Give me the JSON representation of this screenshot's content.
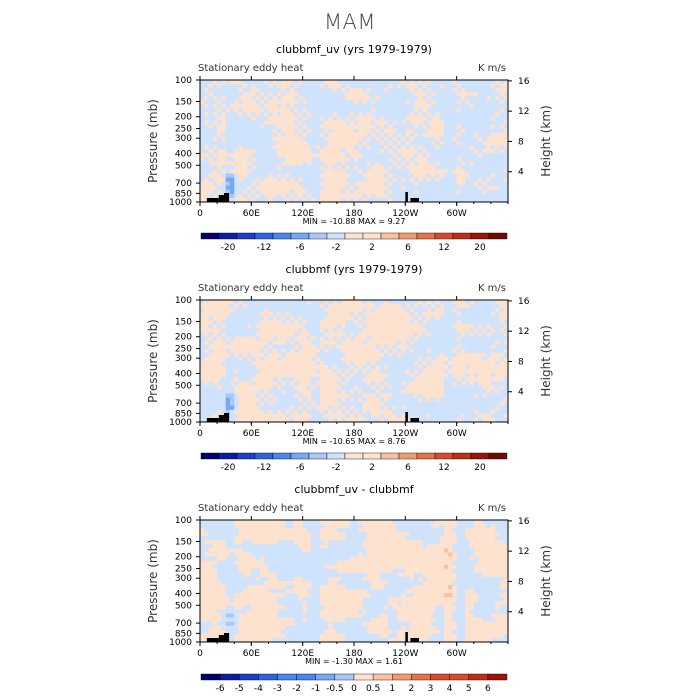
{
  "figure": {
    "title": "MAM"
  },
  "colors": {
    "neg": [
      "#02016b",
      "#0b1fa5",
      "#1a3fca",
      "#2f62e0",
      "#4a86ef",
      "#76a8f5",
      "#a8c8f8",
      "#d0e3fc"
    ],
    "pos": [
      "#fde2cf",
      "#f9c1a0",
      "#f09a72",
      "#e7724a",
      "#d74b2c",
      "#c02e17",
      "#9c150a",
      "#6d0a02"
    ],
    "topo": "#000000"
  },
  "chart_data": [
    {
      "type": "heatmap",
      "title": "clubbmf_uv (yrs 1979-1979)",
      "left_label": "Stationary eddy heat",
      "right_label": "K m/s",
      "ylabel": "Pressure (mb)",
      "ylabel_right": "Height (km)",
      "x_ticks": [
        "0",
        "60E",
        "120E",
        "180",
        "120W",
        "60W"
      ],
      "x_tick_lons": [
        0,
        60,
        120,
        180,
        240,
        300
      ],
      "xlim": [
        0,
        360
      ],
      "y_ticks": [
        "100",
        "150",
        "200",
        "250",
        "300",
        "400",
        "500",
        "700",
        "850",
        "1000"
      ],
      "y_tick_values": [
        100,
        150,
        200,
        250,
        300,
        400,
        500,
        700,
        850,
        1000
      ],
      "ylim": [
        1000,
        100
      ],
      "y_ticks_right": [
        "4",
        "8",
        "12",
        "16"
      ],
      "y_right_values": [
        4,
        8,
        12,
        16
      ],
      "stats_text": "MIN = -10.88  MAX =  9.27",
      "min": -10.88,
      "max": 9.27,
      "colorbar_labels": [
        "-20",
        "-12",
        "-6",
        "-2",
        "2",
        "6",
        "12",
        "20"
      ],
      "colorbar_levels": [
        -20,
        -16,
        -12,
        -8,
        -6,
        -4,
        -2,
        -1,
        1,
        2,
        4,
        6,
        8,
        12,
        16,
        20
      ]
    },
    {
      "type": "heatmap",
      "title": "clubbmf (yrs 1979-1979)",
      "left_label": "Stationary eddy heat",
      "right_label": "K m/s",
      "ylabel": "Pressure (mb)",
      "ylabel_right": "Height (km)",
      "x_ticks": [
        "0",
        "60E",
        "120E",
        "180",
        "120W",
        "60W"
      ],
      "x_tick_lons": [
        0,
        60,
        120,
        180,
        240,
        300
      ],
      "xlim": [
        0,
        360
      ],
      "y_ticks": [
        "100",
        "150",
        "200",
        "250",
        "300",
        "400",
        "500",
        "700",
        "850",
        "1000"
      ],
      "y_tick_values": [
        100,
        150,
        200,
        250,
        300,
        400,
        500,
        700,
        850,
        1000
      ],
      "ylim": [
        1000,
        100
      ],
      "y_ticks_right": [
        "4",
        "8",
        "12",
        "16"
      ],
      "y_right_values": [
        4,
        8,
        12,
        16
      ],
      "stats_text": "MIN = -10.65  MAX =  8.76",
      "min": -10.65,
      "max": 8.76,
      "colorbar_labels": [
        "-20",
        "-12",
        "-6",
        "-2",
        "2",
        "6",
        "12",
        "20"
      ],
      "colorbar_levels": [
        -20,
        -16,
        -12,
        -8,
        -6,
        -4,
        -2,
        -1,
        1,
        2,
        4,
        6,
        8,
        12,
        16,
        20
      ]
    },
    {
      "type": "heatmap",
      "title": "clubbmf_uv - clubbmf",
      "left_label": "Stationary eddy heat",
      "right_label": "K m/s",
      "ylabel": "Pressure (mb)",
      "ylabel_right": "Height (km)",
      "x_ticks": [
        "0",
        "60E",
        "120E",
        "180",
        "120W",
        "60W"
      ],
      "x_tick_lons": [
        0,
        60,
        120,
        180,
        240,
        300
      ],
      "xlim": [
        0,
        360
      ],
      "y_ticks": [
        "100",
        "150",
        "200",
        "250",
        "300",
        "400",
        "500",
        "700",
        "850",
        "1000"
      ],
      "y_tick_values": [
        100,
        150,
        200,
        250,
        300,
        400,
        500,
        700,
        850,
        1000
      ],
      "ylim": [
        1000,
        100
      ],
      "y_ticks_right": [
        "4",
        "8",
        "12",
        "16"
      ],
      "y_right_values": [
        4,
        8,
        12,
        16
      ],
      "stats_text": "MIN = -1.30  MAX =  1.61",
      "min": -1.3,
      "max": 1.61,
      "colorbar_labels": [
        "-6",
        "-5",
        "-4",
        "-3",
        "-2",
        "-1",
        "-0.5",
        "0",
        "0.5",
        "1",
        "2",
        "3",
        "4",
        "5",
        "6"
      ],
      "colorbar_levels": [
        -6,
        -5,
        -4,
        -3,
        -2,
        -1,
        -0.5,
        0,
        0.5,
        1,
        2,
        3,
        4,
        5,
        6
      ]
    }
  ]
}
